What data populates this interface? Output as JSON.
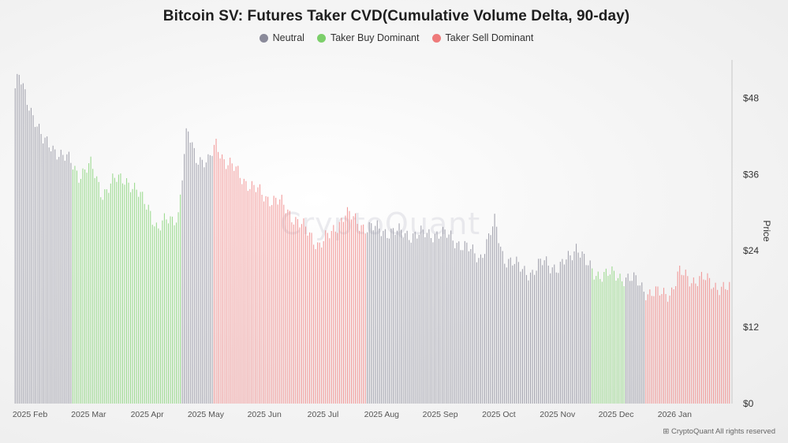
{
  "title": "Bitcoin SV: Futures Taker CVD(Cumulative Volume Delta, 90-day)",
  "legend": [
    {
      "label": "Neutral",
      "color": "#8a8a9a"
    },
    {
      "label": "Taker Buy Dominant",
      "color": "#7ccf6a"
    },
    {
      "label": "Taker Sell Dominant",
      "color": "#ee7a7a"
    }
  ],
  "watermark": "CryptoQuant",
  "footer": "CryptoQuant  All rights reserved",
  "chart_data": {
    "type": "bar",
    "title": "Bitcoin SV: Futures Taker CVD(Cumulative Volume Delta, 90-day)",
    "ylabel": "Price",
    "ylim": [
      0,
      54
    ],
    "yticks": [
      {
        "label": "$0",
        "value": 0
      },
      {
        "label": "$12",
        "value": 12
      },
      {
        "label": "$24",
        "value": 24
      },
      {
        "label": "$36",
        "value": 36
      },
      {
        "label": "$48",
        "value": 48
      }
    ],
    "xlim": [
      0,
      12.22
    ],
    "xticks": [
      {
        "label": "2025 Feb",
        "value": 0
      },
      {
        "label": "2025 Mar",
        "value": 1
      },
      {
        "label": "2025 Apr",
        "value": 2
      },
      {
        "label": "2025 May",
        "value": 3
      },
      {
        "label": "2025 Jun",
        "value": 4
      },
      {
        "label": "2025 Jul",
        "value": 5
      },
      {
        "label": "2025 Aug",
        "value": 6
      },
      {
        "label": "2025 Sep",
        "value": 7
      },
      {
        "label": "2025 Oct",
        "value": 8
      },
      {
        "label": "2025 Nov",
        "value": 9
      },
      {
        "label": "2025 Dec",
        "value": 10
      },
      {
        "label": "2026 Jan",
        "value": 11
      }
    ],
    "series_colors": {
      "neutral": "#8f8f9c",
      "buy": "#86d377",
      "sell": "#f08383"
    },
    "regimes": [
      {
        "from": 0.0,
        "to": 1.0,
        "state": "neutral"
      },
      {
        "from": 1.0,
        "to": 2.85,
        "state": "buy"
      },
      {
        "from": 2.85,
        "to": 3.4,
        "state": "neutral"
      },
      {
        "from": 3.4,
        "to": 6.0,
        "state": "sell"
      },
      {
        "from": 6.0,
        "to": 9.85,
        "state": "neutral"
      },
      {
        "from": 9.85,
        "to": 10.43,
        "state": "buy"
      },
      {
        "from": 10.43,
        "to": 10.77,
        "state": "neutral"
      },
      {
        "from": 10.77,
        "to": 12.22,
        "state": "sell"
      }
    ],
    "price_path": [
      [
        0.0,
        49
      ],
      [
        0.08,
        51.5
      ],
      [
        0.2,
        48
      ],
      [
        0.35,
        45
      ],
      [
        0.5,
        41
      ],
      [
        0.7,
        40
      ],
      [
        0.95,
        38
      ],
      [
        1.1,
        36
      ],
      [
        1.3,
        37.5
      ],
      [
        1.5,
        33
      ],
      [
        1.7,
        35
      ],
      [
        1.9,
        35.5
      ],
      [
        2.1,
        33
      ],
      [
        2.3,
        31
      ],
      [
        2.45,
        27
      ],
      [
        2.6,
        29
      ],
      [
        2.8,
        29.5
      ],
      [
        2.95,
        43
      ],
      [
        3.1,
        39
      ],
      [
        3.3,
        37.5
      ],
      [
        3.45,
        41
      ],
      [
        3.6,
        38
      ],
      [
        3.8,
        36.5
      ],
      [
        4.05,
        34
      ],
      [
        4.3,
        32.5
      ],
      [
        4.55,
        31.5
      ],
      [
        4.8,
        29
      ],
      [
        5.0,
        27
      ],
      [
        5.2,
        25
      ],
      [
        5.4,
        26.5
      ],
      [
        5.65,
        30
      ],
      [
        5.85,
        28.5
      ],
      [
        6.0,
        27.8
      ],
      [
        6.3,
        27.2
      ],
      [
        6.6,
        26.8
      ],
      [
        6.9,
        26.5
      ],
      [
        7.2,
        26.8
      ],
      [
        7.45,
        26.2
      ],
      [
        7.7,
        24.5
      ],
      [
        7.95,
        23
      ],
      [
        8.1,
        26
      ],
      [
        8.2,
        28.5
      ],
      [
        8.35,
        23
      ],
      [
        8.6,
        21.5
      ],
      [
        8.85,
        20.5
      ],
      [
        9.05,
        22.5
      ],
      [
        9.3,
        21
      ],
      [
        9.5,
        23.5
      ],
      [
        9.6,
        25
      ],
      [
        9.75,
        22
      ],
      [
        9.9,
        20.5
      ],
      [
        10.2,
        20.2
      ],
      [
        10.45,
        19.8
      ],
      [
        10.65,
        19
      ],
      [
        10.8,
        17.5
      ],
      [
        11.0,
        17.2
      ],
      [
        11.2,
        17.5
      ],
      [
        11.35,
        20.5
      ],
      [
        11.55,
        19.5
      ],
      [
        11.75,
        19.6
      ],
      [
        12.0,
        18.5
      ],
      [
        12.22,
        17.8
      ]
    ]
  }
}
